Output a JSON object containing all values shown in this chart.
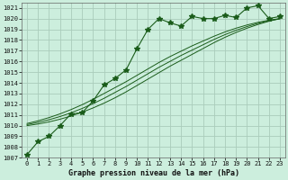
{
  "title": "Graphe pression niveau de la mer (hPa)",
  "bg_color": "#cceedd",
  "grid_color": "#aaccbb",
  "line_color": "#1a5c1a",
  "x_labels": [
    "0",
    "1",
    "2",
    "3",
    "4",
    "5",
    "6",
    "7",
    "8",
    "9",
    "10",
    "11",
    "12",
    "13",
    "14",
    "15",
    "16",
    "17",
    "18",
    "19",
    "20",
    "21",
    "22",
    "23"
  ],
  "ylim": [
    1007,
    1021.5
  ],
  "yticks": [
    1007,
    1008,
    1009,
    1010,
    1011,
    1012,
    1013,
    1014,
    1015,
    1016,
    1017,
    1018,
    1019,
    1020,
    1021
  ],
  "main_data": [
    1007.3,
    1008.5,
    1009.0,
    1010.0,
    1011.1,
    1011.2,
    1012.3,
    1013.8,
    1014.4,
    1015.2,
    1017.2,
    1019.0,
    1020.0,
    1019.6,
    1019.3,
    1020.2,
    1020.0,
    1020.0,
    1020.3,
    1020.1,
    1021.0,
    1021.2,
    1020.0,
    1020.2
  ],
  "smooth1": [
    1010.0,
    1010.15,
    1010.35,
    1010.6,
    1010.9,
    1011.25,
    1011.65,
    1012.1,
    1012.6,
    1013.15,
    1013.75,
    1014.35,
    1014.95,
    1015.55,
    1016.1,
    1016.65,
    1017.2,
    1017.75,
    1018.25,
    1018.7,
    1019.1,
    1019.45,
    1019.75,
    1020.0
  ],
  "smooth2": [
    1010.1,
    1010.3,
    1010.55,
    1010.85,
    1011.2,
    1011.6,
    1012.05,
    1012.55,
    1013.1,
    1013.65,
    1014.25,
    1014.85,
    1015.45,
    1016.0,
    1016.55,
    1017.05,
    1017.55,
    1018.05,
    1018.5,
    1018.9,
    1019.25,
    1019.55,
    1019.8,
    1019.97
  ],
  "smooth3": [
    1010.2,
    1010.45,
    1010.75,
    1011.1,
    1011.5,
    1011.95,
    1012.45,
    1013.0,
    1013.55,
    1014.1,
    1014.7,
    1015.3,
    1015.9,
    1016.45,
    1016.95,
    1017.45,
    1017.9,
    1018.35,
    1018.75,
    1019.1,
    1019.4,
    1019.65,
    1019.85,
    1020.0
  ]
}
